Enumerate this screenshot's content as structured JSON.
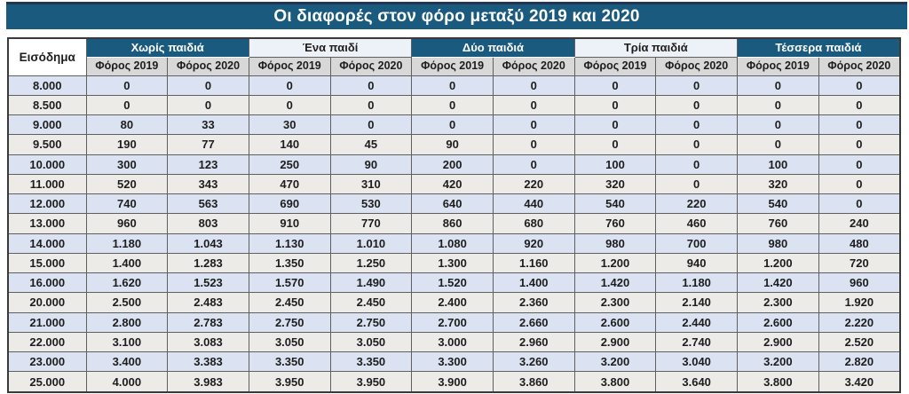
{
  "chart_data": {
    "type": "table",
    "title": "Οι διαφορές στον φόρο μεταξύ 2019 και 2020",
    "income_label": "Εισόδημα",
    "column_groups": [
      "Χωρίς παιδιά",
      "Ένα παιδί",
      "Δύο παιδιά",
      "Τρία παιδιά",
      "Τέσσερα παιδιά"
    ],
    "sub_columns": [
      "Φόρος 2019",
      "Φόρος 2020"
    ],
    "rows": [
      {
        "income": "8.000",
        "values": [
          "0",
          "0",
          "0",
          "0",
          "0",
          "0",
          "0",
          "0",
          "0",
          "0"
        ]
      },
      {
        "income": "8.500",
        "values": [
          "0",
          "0",
          "0",
          "0",
          "0",
          "0",
          "0",
          "0",
          "0",
          "0"
        ]
      },
      {
        "income": "9.000",
        "values": [
          "80",
          "33",
          "30",
          "0",
          "0",
          "0",
          "0",
          "0",
          "0",
          "0"
        ]
      },
      {
        "income": "9.500",
        "values": [
          "190",
          "77",
          "140",
          "45",
          "90",
          "0",
          "0",
          "0",
          "0",
          "0"
        ]
      },
      {
        "income": "10.000",
        "values": [
          "300",
          "123",
          "250",
          "90",
          "200",
          "0",
          "100",
          "0",
          "100",
          "0"
        ]
      },
      {
        "income": "11.000",
        "values": [
          "520",
          "343",
          "470",
          "310",
          "420",
          "220",
          "320",
          "0",
          "320",
          "0"
        ]
      },
      {
        "income": "12.000",
        "values": [
          "740",
          "563",
          "690",
          "530",
          "640",
          "440",
          "540",
          "220",
          "540",
          "0"
        ]
      },
      {
        "income": "13.000",
        "values": [
          "960",
          "803",
          "910",
          "770",
          "860",
          "680",
          "760",
          "460",
          "760",
          "240"
        ]
      },
      {
        "income": "14.000",
        "values": [
          "1.180",
          "1.043",
          "1.130",
          "1.010",
          "1.080",
          "920",
          "980",
          "700",
          "980",
          "480"
        ]
      },
      {
        "income": "15.000",
        "values": [
          "1.400",
          "1.283",
          "1.350",
          "1.250",
          "1.300",
          "1.160",
          "1.200",
          "940",
          "1.200",
          "720"
        ]
      },
      {
        "income": "16.000",
        "values": [
          "1.620",
          "1.523",
          "1.570",
          "1.490",
          "1.520",
          "1.400",
          "1.420",
          "1.180",
          "1.420",
          "960"
        ]
      },
      {
        "income": "20.000",
        "values": [
          "2.500",
          "2.483",
          "2.450",
          "2.450",
          "2.400",
          "2.360",
          "2.300",
          "2.140",
          "2.300",
          "1.920"
        ]
      },
      {
        "income": "21.000",
        "values": [
          "2.800",
          "2.783",
          "2.750",
          "2.750",
          "2.700",
          "2.660",
          "2.600",
          "2.440",
          "2.600",
          "2.220"
        ]
      },
      {
        "income": "22.000",
        "values": [
          "3.100",
          "3.083",
          "3.050",
          "3.050",
          "3.000",
          "2.960",
          "2.900",
          "2.740",
          "2.900",
          "2.520"
        ]
      },
      {
        "income": "23.000",
        "values": [
          "3.400",
          "3.383",
          "3.350",
          "3.350",
          "3.300",
          "3.260",
          "3.200",
          "3.040",
          "3.200",
          "2.820"
        ]
      },
      {
        "income": "25.000",
        "values": [
          "4.000",
          "3.983",
          "3.950",
          "3.950",
          "3.900",
          "3.860",
          "3.800",
          "3.640",
          "3.800",
          "3.420"
        ]
      }
    ],
    "layout_hints": {
      "group_header_styles": [
        "dark",
        "light",
        "dark",
        "light",
        "dark"
      ],
      "row_striping": [
        "blue",
        "offwhite"
      ]
    }
  },
  "colors": {
    "header_teal": "#1a5a7e",
    "title_top_strip": "#24364f",
    "header_light": "#edf1f8",
    "subheader_gray": "#d8d8d8",
    "row_blue": "#dbe3f2",
    "row_offwhite": "#edebe8",
    "text_dark": "#1d1d1d",
    "text_white": "#ffffff"
  }
}
